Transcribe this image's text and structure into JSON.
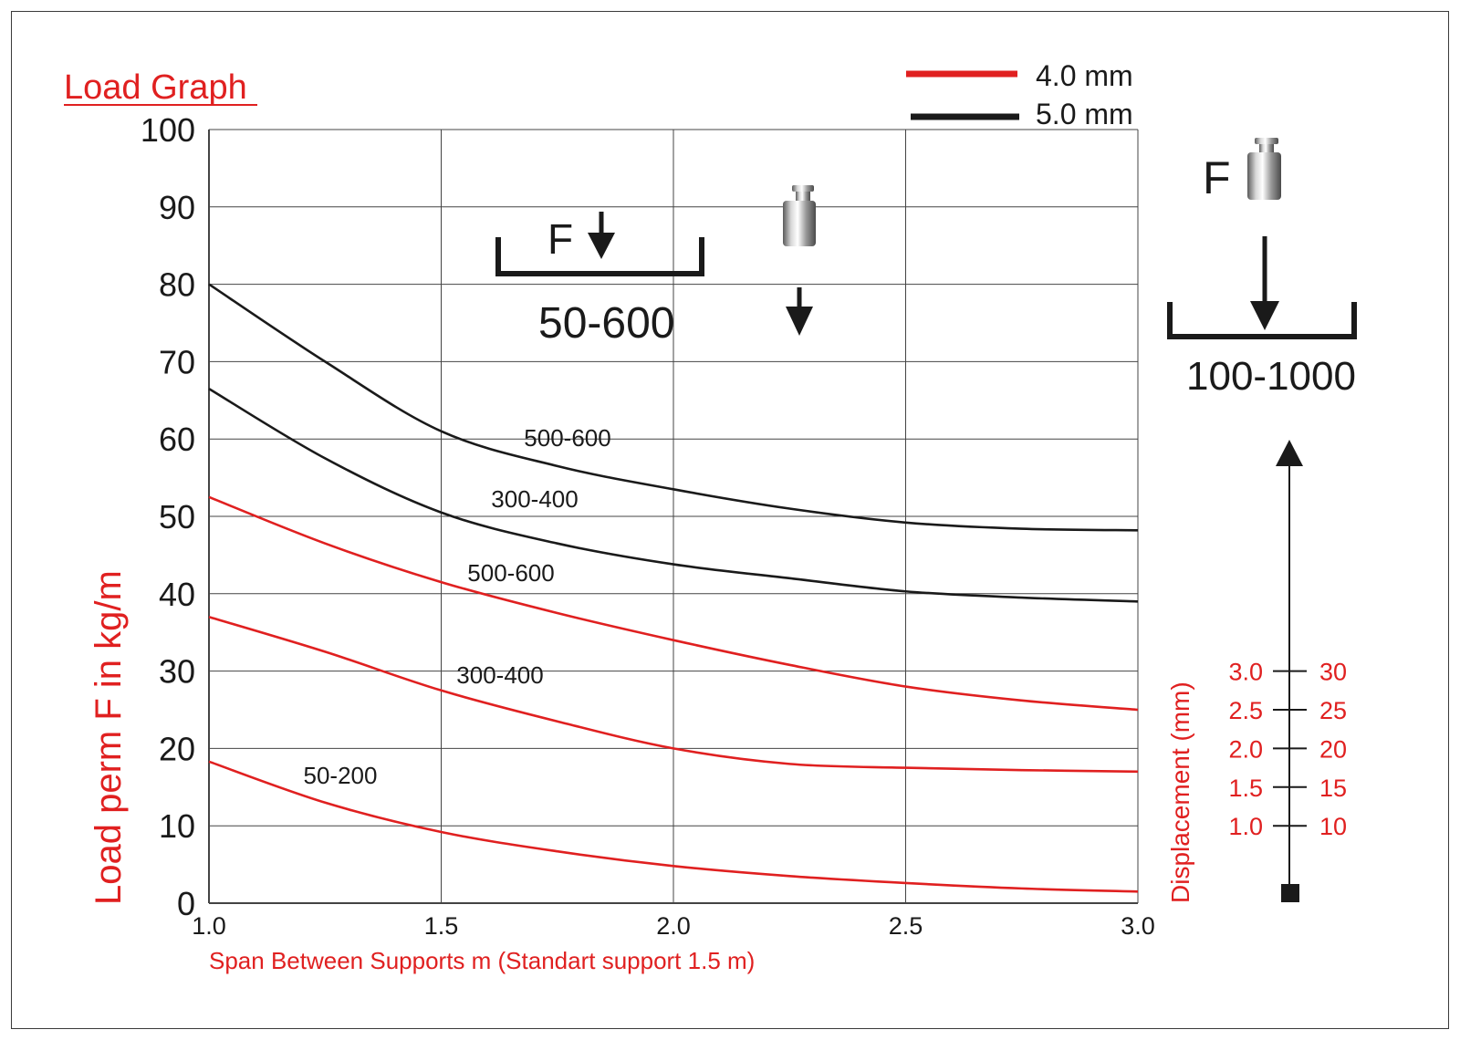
{
  "chart_data": {
    "type": "line",
    "title": "Load Graph",
    "xlabel": "Span Between Supports m (Standart support 1.5 m)",
    "ylabel": "Load perm F in kg/m",
    "xlim": [
      1.0,
      3.0
    ],
    "ylim": [
      0,
      100
    ],
    "x_ticks": [
      "1.0",
      "1.5",
      "2.0",
      "2.5",
      "3.0"
    ],
    "y_ticks": [
      "0",
      "10",
      "20",
      "30",
      "40",
      "50",
      "60",
      "70",
      "80",
      "90",
      "100"
    ],
    "grid": true,
    "legend": {
      "position": "top-right",
      "items": [
        {
          "label": "4.0 mm",
          "color": "#e02020"
        },
        {
          "label": "5.0 mm",
          "color": "#1a1a1a"
        }
      ]
    },
    "series": [
      {
        "label": "500-600",
        "color": "#1a1a1a",
        "group": "5.0 mm",
        "x": [
          1.0,
          1.25,
          1.5,
          1.75,
          2.0,
          2.25,
          2.5,
          2.75,
          3.0
        ],
        "y": [
          80,
          70,
          61,
          56.5,
          53.5,
          51,
          49.2,
          48.4,
          48.2
        ]
      },
      {
        "label": "300-400",
        "color": "#1a1a1a",
        "group": "5.0 mm",
        "x": [
          1.0,
          1.25,
          1.5,
          1.75,
          2.0,
          2.25,
          2.5,
          2.75,
          3.0
        ],
        "y": [
          66.5,
          57.5,
          50.5,
          46.5,
          43.8,
          42,
          40.3,
          39.5,
          39
        ]
      },
      {
        "label": "500-600",
        "color": "#e02020",
        "group": "4.0 mm",
        "x": [
          1.0,
          1.25,
          1.5,
          1.75,
          2.0,
          2.25,
          2.5,
          2.75,
          3.0
        ],
        "y": [
          52.5,
          46.5,
          41.5,
          37.5,
          34,
          30.8,
          28,
          26.2,
          25
        ]
      },
      {
        "label": "300-400",
        "color": "#e02020",
        "group": "4.0 mm",
        "x": [
          1.0,
          1.25,
          1.5,
          1.75,
          2.0,
          2.25,
          2.5,
          2.75,
          3.0
        ],
        "y": [
          37,
          32.5,
          27.5,
          23.5,
          20,
          18,
          17.5,
          17.2,
          17
        ]
      },
      {
        "label": "50-200",
        "color": "#e02020",
        "group": "4.0 mm",
        "x": [
          1.0,
          1.25,
          1.5,
          1.75,
          2.0,
          2.25,
          2.5,
          2.75,
          3.0
        ],
        "y": [
          18.3,
          13,
          9.2,
          6.7,
          4.8,
          3.5,
          2.6,
          1.9,
          1.5
        ]
      }
    ],
    "annotations": {
      "left_diagram": {
        "force_label": "F",
        "range": "50-600"
      },
      "right_diagram": {
        "force_label": "F",
        "range": "100-1000"
      }
    },
    "displacement_axis": {
      "label": "Displacement (mm)",
      "mm_ticks": [
        "3.0",
        "2.5",
        "2.0",
        "1.5",
        "1.0"
      ],
      "load_ticks": [
        "30",
        "25",
        "20",
        "15",
        "10"
      ],
      "load_values": [
        30,
        25,
        20,
        15,
        10
      ]
    }
  },
  "colors": {
    "red": "#e02020",
    "black": "#1a1a1a",
    "grid": "#444444"
  },
  "icons": [
    "weight-icon",
    "down-arrow-icon",
    "up-arrow-icon"
  ]
}
